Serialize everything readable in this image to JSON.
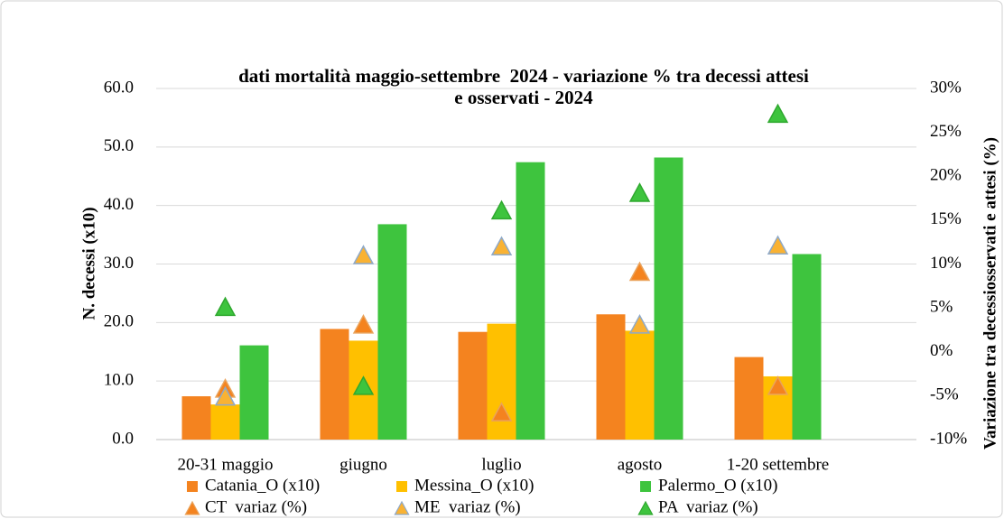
{
  "chart_data": {
    "type": "bar",
    "title": [
      "dati mortalità maggio-settembre  2024 - variazione % tra decessi attesi",
      "e osservati - 2024"
    ],
    "y_label": "N. decessi (x10)",
    "y2_label": "Variazione tra decessiosservati e attesi (%)",
    "categories": [
      "20-31 maggio",
      "giugno",
      "luglio",
      "agosto",
      "1-20 settembre"
    ],
    "series": [
      {
        "name": "Catania_O (x10)",
        "color": "#f4831f",
        "values": [
          7.4,
          18.9,
          18.4,
          21.4,
          14.1
        ]
      },
      {
        "name": "Messina_O (x10)",
        "color": "#ffc000",
        "values": [
          6.0,
          16.9,
          19.8,
          18.6,
          10.8
        ]
      },
      {
        "name": "Palermo_O (x10)",
        "color": "#3ec43e",
        "values": [
          16.1,
          36.8,
          47.4,
          48.2,
          31.7
        ]
      },
      {
        "name": "CT  variaz (%)",
        "color": "#f4831f",
        "edge": "#e9a35c",
        "axis": "y2",
        "values": [
          -4.3,
          3,
          -7,
          9,
          -4
        ]
      },
      {
        "name": "ME  variaz (%)",
        "color": "#f9b233",
        "edge": "#8ea9c9",
        "axis": "y2",
        "values": [
          -5.2,
          10.9,
          11.9,
          3,
          12
        ]
      },
      {
        "name": "PA  variaz (%)",
        "color": "#3ec43e",
        "edge": "#2fa82f",
        "axis": "y2",
        "values": [
          5,
          -4,
          16,
          18,
          27
        ]
      }
    ],
    "ylim": [
      0,
      60
    ],
    "yticks": [
      {
        "value": 0,
        "label": "0.0"
      },
      {
        "value": 10,
        "label": "10.0"
      },
      {
        "value": 20,
        "label": "20.0"
      },
      {
        "value": 30,
        "label": "30.0"
      },
      {
        "value": 40,
        "label": "40.0"
      },
      {
        "value": 50,
        "label": "50.0"
      },
      {
        "value": 60,
        "label": "60.0"
      }
    ],
    "y2lim": [
      -10,
      30
    ],
    "y2ticks": [
      {
        "value": -10,
        "label": "-10%"
      },
      {
        "value": -5,
        "label": "-5%"
      },
      {
        "value": 0,
        "label": "0%"
      },
      {
        "value": 5,
        "label": "5%"
      },
      {
        "value": 10,
        "label": "10%"
      },
      {
        "value": 15,
        "label": "15%"
      },
      {
        "value": 20,
        "label": "20%"
      },
      {
        "value": 25,
        "label": "25%"
      },
      {
        "value": 30,
        "label": "30%"
      }
    ],
    "grid": true
  }
}
